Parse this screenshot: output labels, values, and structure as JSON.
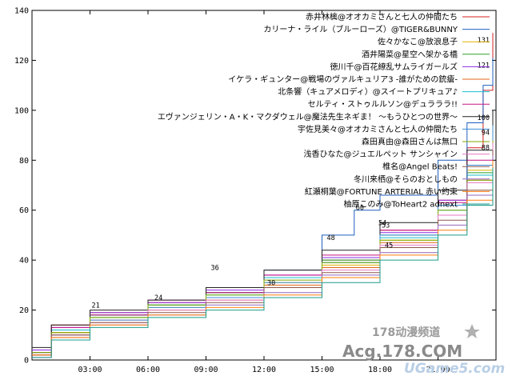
{
  "chart_data": {
    "type": "line",
    "title": "",
    "xlabel": "",
    "ylabel": "",
    "xlim": [
      0,
      1440
    ],
    "ylim": [
      0,
      140
    ],
    "grid": false,
    "legend_position": "top-right",
    "x_ticks": [
      {
        "value": 180,
        "label": "03:00"
      },
      {
        "value": 360,
        "label": "06:00"
      },
      {
        "value": 540,
        "label": "09:00"
      },
      {
        "value": 720,
        "label": "12:00"
      },
      {
        "value": 900,
        "label": "15:00"
      },
      {
        "value": 1080,
        "label": "18:00"
      },
      {
        "value": 1260,
        "label": "21:00"
      }
    ],
    "y_ticks": [
      0,
      20,
      40,
      60,
      80,
      100,
      120,
      140
    ],
    "series": [
      {
        "name": "赤井林檎@オオカミさんと七人の仲間たち",
        "color": "#d42020",
        "points": [
          [
            0,
            3
          ],
          [
            60,
            14
          ],
          [
            180,
            19
          ],
          [
            360,
            23
          ],
          [
            540,
            27
          ],
          [
            720,
            33
          ],
          [
            900,
            40
          ],
          [
            1080,
            52
          ],
          [
            1260,
            64
          ],
          [
            1350,
            85
          ],
          [
            1400,
            108
          ],
          [
            1430,
            131
          ]
        ],
        "end_label": "131"
      },
      {
        "name": "カリーナ・ライル（ブルーローズ）@TIGER&BUNNY",
        "color": "#1f5fbf",
        "points": [
          [
            0,
            4
          ],
          [
            60,
            12
          ],
          [
            180,
            18
          ],
          [
            360,
            22
          ],
          [
            540,
            27
          ],
          [
            720,
            36
          ],
          [
            900,
            50
          ],
          [
            1000,
            60
          ],
          [
            1080,
            66
          ],
          [
            1260,
            80
          ],
          [
            1350,
            95
          ],
          [
            1400,
            110
          ],
          [
            1430,
            121
          ]
        ],
        "end_label": "121"
      },
      {
        "name": "佐々かなこ@放浪息子",
        "color": "#e0b000",
        "points": [
          [
            0,
            2
          ],
          [
            60,
            11
          ],
          [
            180,
            17
          ],
          [
            360,
            21
          ],
          [
            540,
            25
          ],
          [
            720,
            31
          ],
          [
            900,
            38
          ],
          [
            1080,
            48
          ],
          [
            1260,
            62
          ],
          [
            1350,
            76
          ],
          [
            1430,
            93
          ]
        ],
        "end_label": ""
      },
      {
        "name": "酒井陽菜@星空へ架かる橋",
        "color": "#2aa02a",
        "points": [
          [
            0,
            3
          ],
          [
            60,
            12
          ],
          [
            180,
            18
          ],
          [
            360,
            22
          ],
          [
            540,
            27
          ],
          [
            720,
            33
          ],
          [
            900,
            40
          ],
          [
            1080,
            50
          ],
          [
            1260,
            62
          ],
          [
            1350,
            75
          ],
          [
            1430,
            90
          ]
        ],
        "end_label": ""
      },
      {
        "name": "徳川千@百花繚乱サムライガールズ",
        "color": "#8a2be2",
        "points": [
          [
            0,
            4
          ],
          [
            60,
            13
          ],
          [
            180,
            19
          ],
          [
            360,
            23
          ],
          [
            540,
            28
          ],
          [
            720,
            34
          ],
          [
            900,
            41
          ],
          [
            1080,
            51
          ],
          [
            1260,
            64
          ],
          [
            1350,
            78
          ],
          [
            1430,
            95
          ]
        ],
        "end_label": ""
      },
      {
        "name": "イケラ・ギュンター@戦場のヴァルキュリア3 -誰がための銃瘡-",
        "color": "#e36414",
        "points": [
          [
            0,
            2
          ],
          [
            60,
            11
          ],
          [
            180,
            16
          ],
          [
            360,
            20
          ],
          [
            540,
            24
          ],
          [
            720,
            30
          ],
          [
            900,
            37
          ],
          [
            1080,
            47
          ],
          [
            1260,
            58
          ],
          [
            1350,
            72
          ],
          [
            1430,
            88
          ]
        ],
        "end_label": ""
      },
      {
        "name": "北条響（キュアメロディ）@スイートプリキュア♪",
        "color": "#17becf",
        "points": [
          [
            0,
            3
          ],
          [
            60,
            12
          ],
          [
            180,
            17
          ],
          [
            360,
            22
          ],
          [
            540,
            26
          ],
          [
            720,
            33
          ],
          [
            900,
            39
          ],
          [
            1080,
            49
          ],
          [
            1260,
            60
          ],
          [
            1350,
            74
          ],
          [
            1430,
            91
          ]
        ],
        "end_label": ""
      },
      {
        "name": "セルティ・ストゥルルソン@デュラララ!!",
        "color": "#c71585",
        "points": [
          [
            0,
            3
          ],
          [
            60,
            13
          ],
          [
            180,
            18
          ],
          [
            360,
            24
          ],
          [
            540,
            27
          ],
          [
            720,
            34
          ],
          [
            900,
            42
          ],
          [
            1080,
            52
          ],
          [
            1260,
            63
          ],
          [
            1350,
            80
          ],
          [
            1430,
            97
          ]
        ],
        "end_label": ""
      },
      {
        "name": "エヴァンジェリン・A・K・マクダウェル@魔法先生ネギま！ ～もうひとつの世界～",
        "color": "#222222",
        "points": [
          [
            0,
            5
          ],
          [
            60,
            14
          ],
          [
            180,
            20
          ],
          [
            360,
            24
          ],
          [
            540,
            29
          ],
          [
            720,
            36
          ],
          [
            900,
            44
          ],
          [
            1080,
            55
          ],
          [
            1260,
            68
          ],
          [
            1350,
            84
          ],
          [
            1430,
            100
          ]
        ],
        "end_label": "100"
      },
      {
        "name": "宇佐見美々@オオカミさんと七人の仲間たち",
        "color": "#3c8dd6",
        "points": [
          [
            0,
            2
          ],
          [
            60,
            10
          ],
          [
            180,
            16
          ],
          [
            360,
            21
          ],
          [
            540,
            25
          ],
          [
            720,
            31
          ],
          [
            900,
            39
          ],
          [
            1080,
            50
          ],
          [
            1260,
            62
          ],
          [
            1350,
            78
          ],
          [
            1430,
            94
          ]
        ],
        "end_label": "94"
      },
      {
        "name": "森田真由@森田さんは無口",
        "color": "#7fa800",
        "points": [
          [
            0,
            3
          ],
          [
            60,
            11
          ],
          [
            180,
            17
          ],
          [
            360,
            22
          ],
          [
            540,
            26
          ],
          [
            720,
            32
          ],
          [
            900,
            39
          ],
          [
            1080,
            48
          ],
          [
            1260,
            60
          ],
          [
            1350,
            72
          ],
          [
            1430,
            88
          ]
        ],
        "end_label": "88"
      },
      {
        "name": "浅香ひなた@ジュエルペット サンシャイン",
        "color": "#e377c2",
        "points": [
          [
            0,
            2
          ],
          [
            60,
            10
          ],
          [
            180,
            15
          ],
          [
            360,
            20
          ],
          [
            540,
            24
          ],
          [
            720,
            29
          ],
          [
            900,
            36
          ],
          [
            1080,
            46
          ],
          [
            1260,
            58
          ],
          [
            1350,
            71
          ],
          [
            1430,
            87
          ]
        ],
        "end_label": ""
      },
      {
        "name": "椎名@Angel Beats!",
        "color": "#8c564b",
        "points": [
          [
            0,
            2
          ],
          [
            60,
            10
          ],
          [
            180,
            15
          ],
          [
            360,
            19
          ],
          [
            540,
            23
          ],
          [
            720,
            29
          ],
          [
            900,
            35
          ],
          [
            1080,
            45
          ],
          [
            1260,
            56
          ],
          [
            1350,
            68
          ],
          [
            1430,
            84
          ]
        ],
        "end_label": ""
      },
      {
        "name": "冬川来栖@そらのおとしもの",
        "color": "#9467bd",
        "points": [
          [
            0,
            1
          ],
          [
            60,
            9
          ],
          [
            180,
            14
          ],
          [
            360,
            18
          ],
          [
            540,
            22
          ],
          [
            720,
            27
          ],
          [
            900,
            34
          ],
          [
            1080,
            43
          ],
          [
            1260,
            54
          ],
          [
            1350,
            66
          ],
          [
            1430,
            82
          ]
        ],
        "end_label": ""
      },
      {
        "name": "紅瀬桐葉@FORTUNE ARTERIAL 赤い約束",
        "color": "#ff7f0e",
        "points": [
          [
            0,
            2
          ],
          [
            60,
            9
          ],
          [
            180,
            14
          ],
          [
            360,
            18
          ],
          [
            540,
            21
          ],
          [
            720,
            26
          ],
          [
            900,
            33
          ],
          [
            1080,
            42
          ],
          [
            1260,
            52
          ],
          [
            1350,
            64
          ],
          [
            1430,
            80
          ]
        ],
        "end_label": ""
      },
      {
        "name": "柚原このみ@ToHeart2 adnext",
        "color": "#1a9c8c",
        "points": [
          [
            0,
            1
          ],
          [
            60,
            8
          ],
          [
            180,
            13
          ],
          [
            360,
            17
          ],
          [
            540,
            20
          ],
          [
            720,
            25
          ],
          [
            900,
            31
          ],
          [
            1080,
            40
          ],
          [
            1260,
            50
          ],
          [
            1350,
            62
          ],
          [
            1430,
            77
          ]
        ],
        "end_label": ""
      }
    ],
    "annotations": [
      {
        "text": "60",
        "x": 1005,
        "y": 60
      },
      {
        "text": "53",
        "x": 1085,
        "y": 53
      },
      {
        "text": "54",
        "x": 1075,
        "y": 54
      },
      {
        "text": "48",
        "x": 915,
        "y": 48
      },
      {
        "text": "45",
        "x": 1095,
        "y": 45
      },
      {
        "text": "36",
        "x": 555,
        "y": 36
      },
      {
        "text": "30",
        "x": 730,
        "y": 30
      },
      {
        "text": "24",
        "x": 380,
        "y": 24
      },
      {
        "text": "21",
        "x": 185,
        "y": 21
      }
    ]
  },
  "watermark": {
    "line1": "178动漫频道",
    "line2": "Acg.178.COM",
    "line3": "UGame5.com"
  }
}
